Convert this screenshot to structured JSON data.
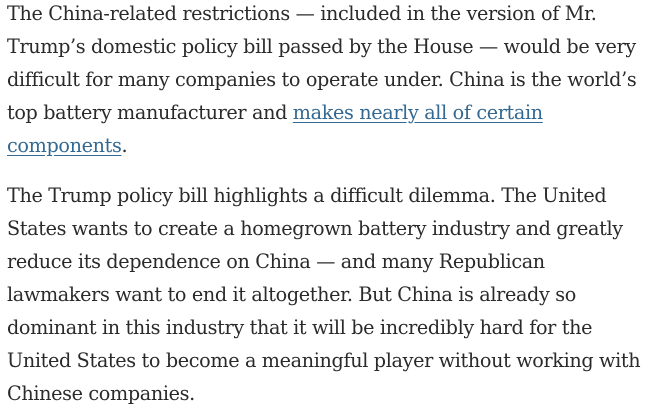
{
  "paragraphs": [
    {
      "lines": [
        "The China-related restrictions — included in the version of Mr.",
        "Trump’s domestic policy bill passed by the House — would be very",
        "difficult for many companies to operate under. China is the world’s",
        "top battery manufacturer and "
      ],
      "link_part1": "makes nearly all of certain",
      "link_part2": "components",
      "after_link": "."
    },
    {
      "lines": [
        "The Trump policy bill highlights a difficult dilemma. The United",
        "States wants to create a homegrown battery industry and greatly",
        "reduce its dependence on China — and many Republican",
        "lawmakers want to end it altogether. But China is already so",
        "dominant in this industry that it will be incredibly hard for the",
        "United States to become a meaningful player without working with",
        "Chinese companies."
      ]
    }
  ],
  "colors": {
    "text": "#2a2a2a",
    "link": "#326891"
  }
}
